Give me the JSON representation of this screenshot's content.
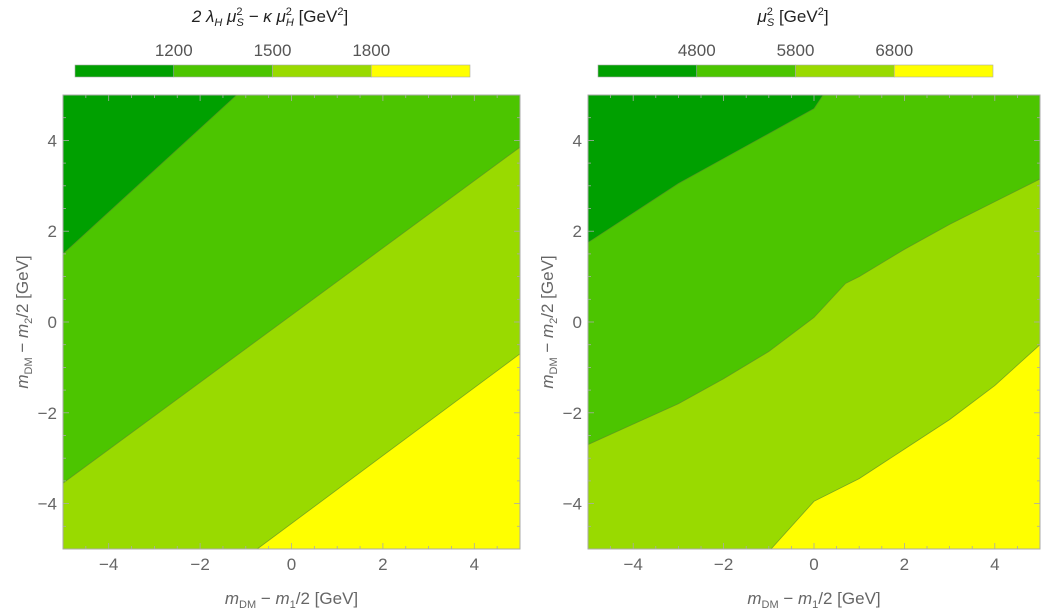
{
  "colors": {
    "level1": "#00a000",
    "level2": "#4cc500",
    "level3": "#99da00",
    "level4": "#ffff00",
    "frame": "#aaaaaa",
    "contour_line": "#5b8a2a"
  },
  "chart_data": [
    {
      "type": "contour",
      "title_parts": [
        "2 λ",
        "H",
        " μ",
        "2",
        "S",
        " − κ μ",
        "2",
        "H",
        " [GeV",
        "2",
        "]"
      ],
      "colorbar": {
        "tick_labels": [
          "1200",
          "1500",
          "1800"
        ],
        "levels": [
          {
            "range": "< 1200",
            "color": "#00a000"
          },
          {
            "range": "1200–1500",
            "color": "#4cc500"
          },
          {
            "range": "1500–1800",
            "color": "#99da00"
          },
          {
            "range": "> 1800",
            "color": "#ffff00"
          }
        ]
      },
      "xlabel_parts": [
        "m",
        "DM",
        " − ",
        "m",
        "1",
        "/2 [GeV]"
      ],
      "ylabel_parts": [
        "m",
        "DM",
        " − ",
        "m",
        "2",
        "/2 [GeV]"
      ],
      "xlim": [
        -5,
        5
      ],
      "ylim": [
        -5,
        5
      ],
      "xticks": [
        -4,
        -2,
        0,
        2,
        4
      ],
      "yticks": [
        -4,
        -2,
        0,
        2,
        4
      ],
      "xtick_labels": [
        "−4",
        "−2",
        "0",
        "2",
        "4"
      ],
      "ytick_labels": [
        "−4",
        "−2",
        "0",
        "2",
        "4"
      ],
      "contours": [
        {
          "level": 1200,
          "points": [
            [
              -5,
              1.5
            ],
            [
              -1.2,
              5
            ]
          ]
        },
        {
          "level": 1500,
          "points": [
            [
              -5,
              -3.55
            ],
            [
              5,
              3.85
            ]
          ]
        },
        {
          "level": 1800,
          "points": [
            [
              -0.75,
              -5
            ],
            [
              5,
              -0.7
            ]
          ]
        }
      ]
    },
    {
      "type": "contour",
      "title_parts": [
        "μ",
        "2",
        "S",
        " [GeV",
        "2",
        "]"
      ],
      "colorbar": {
        "tick_labels": [
          "4800",
          "5800",
          "6800"
        ],
        "levels": [
          {
            "range": "< 4800",
            "color": "#00a000"
          },
          {
            "range": "4800–5800",
            "color": "#4cc500"
          },
          {
            "range": "5800–6800",
            "color": "#99da00"
          },
          {
            "range": "> 6800",
            "color": "#ffff00"
          }
        ]
      },
      "xlabel_parts": [
        "m",
        "DM",
        " − ",
        "m",
        "1",
        "/2 [GeV]"
      ],
      "ylabel_parts": [
        "m",
        "DM",
        " − ",
        "m",
        "2",
        "/2 [GeV]"
      ],
      "xlim": [
        -5,
        5
      ],
      "ylim": [
        -5,
        5
      ],
      "xticks": [
        -4,
        -2,
        0,
        2,
        4
      ],
      "yticks": [
        -4,
        -2,
        0,
        2,
        4
      ],
      "xtick_labels": [
        "−4",
        "−2",
        "0",
        "2",
        "4"
      ],
      "ytick_labels": [
        "−4",
        "−2",
        "0",
        "2",
        "4"
      ],
      "contours": [
        {
          "level": 4800,
          "points": [
            [
              -5,
              1.75
            ],
            [
              -4,
              2.4
            ],
            [
              -3,
              3.05
            ],
            [
              -2,
              3.6
            ],
            [
              -1,
              4.15
            ],
            [
              0,
              4.7
            ],
            [
              0.2,
              5
            ]
          ]
        },
        {
          "level": 5800,
          "points": [
            [
              -5,
              -2.7
            ],
            [
              -4,
              -2.25
            ],
            [
              -3,
              -1.8
            ],
            [
              -2,
              -1.25
            ],
            [
              -1,
              -0.65
            ],
            [
              0,
              0.1
            ],
            [
              0.7,
              0.85
            ],
            [
              1,
              1.0
            ],
            [
              2,
              1.6
            ],
            [
              3,
              2.15
            ],
            [
              4,
              2.65
            ],
            [
              5,
              3.15
            ]
          ]
        },
        {
          "level": 6800,
          "points": [
            [
              -0.95,
              -5
            ],
            [
              0,
              -3.95
            ],
            [
              1,
              -3.45
            ],
            [
              2,
              -2.8
            ],
            [
              3,
              -2.15
            ],
            [
              4,
              -1.4
            ],
            [
              5,
              -0.5
            ]
          ]
        }
      ]
    }
  ]
}
